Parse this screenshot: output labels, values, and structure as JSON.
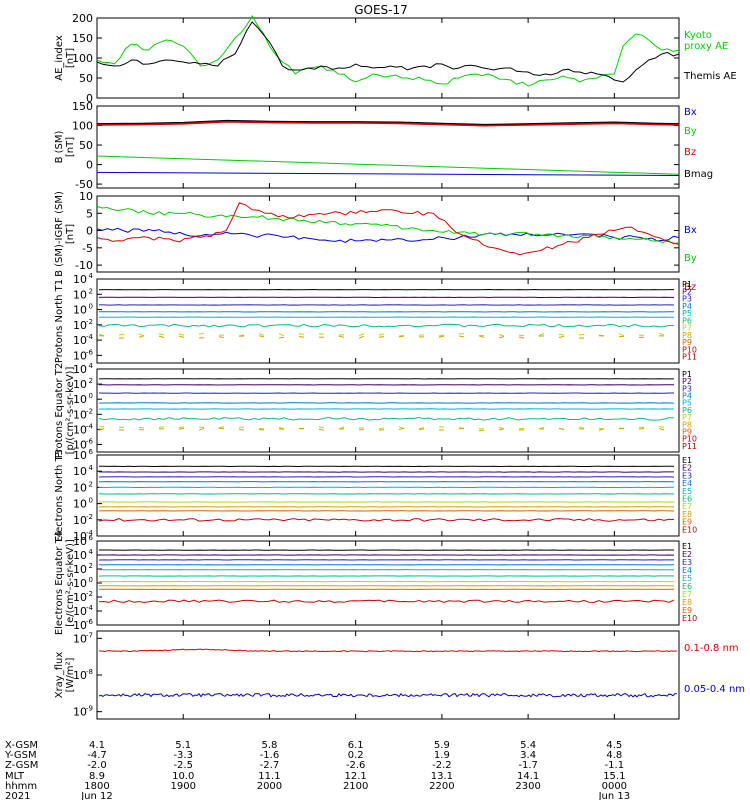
{
  "title": "GOES-17",
  "chart_data": [
    {
      "type": "line",
      "panel": "ae",
      "ylabel": "AE_index [nT]",
      "ylim": [
        0,
        200
      ],
      "yticks": [
        "0",
        "50",
        "100",
        "150",
        "200"
      ],
      "yscale": "linear",
      "x_hours_range": [
        18,
        24.75
      ],
      "series": [
        {
          "name": "Kyoto proxy AE",
          "color": "#00d000",
          "x": [
            18.0,
            18.2,
            18.4,
            18.6,
            18.8,
            19.0,
            19.2,
            19.4,
            19.6,
            19.8,
            20.0,
            20.15,
            20.3,
            20.45,
            20.6,
            20.8,
            21.0,
            21.2,
            21.4,
            21.6,
            21.8,
            22.0,
            22.2,
            22.4,
            22.6,
            22.8,
            23.0,
            23.2,
            23.4,
            23.6,
            23.8,
            24.0,
            24.1,
            24.25,
            24.4,
            24.55,
            24.75
          ],
          "y": [
            95,
            85,
            135,
            120,
            145,
            130,
            80,
            95,
            150,
            205,
            130,
            90,
            60,
            75,
            80,
            60,
            40,
            60,
            55,
            50,
            45,
            35,
            50,
            60,
            55,
            45,
            30,
            45,
            55,
            40,
            50,
            60,
            130,
            160,
            145,
            120,
            120
          ]
        },
        {
          "name": "Themis AE",
          "color": "#000000",
          "x": [
            18.0,
            18.2,
            18.4,
            18.6,
            18.8,
            19.0,
            19.2,
            19.4,
            19.6,
            19.8,
            20.0,
            20.15,
            20.3,
            20.45,
            20.6,
            20.8,
            21.0,
            21.2,
            21.4,
            21.6,
            21.8,
            22.0,
            22.2,
            22.4,
            22.6,
            22.8,
            23.0,
            23.2,
            23.4,
            23.6,
            23.8,
            24.0,
            24.1,
            24.25,
            24.4,
            24.55,
            24.75
          ],
          "y": [
            90,
            80,
            95,
            85,
            95,
            90,
            85,
            80,
            110,
            190,
            140,
            80,
            70,
            75,
            80,
            75,
            85,
            75,
            80,
            70,
            80,
            85,
            75,
            80,
            70,
            75,
            65,
            60,
            70,
            65,
            60,
            45,
            40,
            70,
            95,
            110,
            110
          ]
        }
      ],
      "legend": [
        {
          "text": "Kyoto",
          "color": "#00d000"
        },
        {
          "text": "proxy AE",
          "color": "#00d000"
        },
        {
          "text": "Themis AE",
          "color": "#000000"
        }
      ]
    },
    {
      "type": "line",
      "panel": "bsm",
      "ylabel": "B (SM) [nT]",
      "ylim": [
        -60,
        150
      ],
      "yticks": [
        "-50",
        "0",
        "50",
        "100",
        "150"
      ],
      "yscale": "linear",
      "x_hours_range": [
        18,
        24.75
      ],
      "series": [
        {
          "name": "Bx",
          "color": "#0000dd",
          "x": [
            18,
            24.75
          ],
          "y": [
            -20,
            -28
          ]
        },
        {
          "name": "By",
          "color": "#00cc00",
          "x": [
            18,
            24.75
          ],
          "y": [
            22,
            -25
          ]
        },
        {
          "name": "Bz",
          "color": "#dd0000",
          "x": [
            18,
            18.5,
            19.0,
            19.5,
            20.0,
            20.5,
            21.0,
            21.5,
            22.0,
            22.5,
            23.0,
            23.5,
            24.0,
            24.5,
            24.75
          ],
          "y": [
            102,
            103,
            105,
            110,
            108,
            107,
            107,
            106,
            103,
            100,
            102,
            104,
            106,
            103,
            102
          ]
        },
        {
          "name": "Bmag",
          "color": "#000000",
          "x": [
            18,
            18.5,
            19.0,
            19.5,
            20.0,
            20.5,
            21.0,
            21.5,
            22.0,
            22.5,
            23.0,
            23.5,
            24.0,
            24.5,
            24.75
          ],
          "y": [
            105,
            106,
            108,
            113,
            111,
            110,
            110,
            109,
            106,
            103,
            105,
            107,
            109,
            106,
            105
          ]
        }
      ],
      "legend": [
        {
          "text": "Bx",
          "color": "#0000dd"
        },
        {
          "text": "By",
          "color": "#00cc00"
        },
        {
          "text": "Bz",
          "color": "#dd0000"
        },
        {
          "text": "Bmag",
          "color": "#000000"
        }
      ]
    },
    {
      "type": "line",
      "panel": "igrf",
      "ylabel": "B (SM)-IGRF (SM) [nT]",
      "ylim": [
        -12,
        10
      ],
      "yticks": [
        "-10",
        "-5",
        "0",
        "5",
        "10"
      ],
      "yscale": "linear",
      "x_hours_range": [
        18,
        24.75
      ],
      "series": [
        {
          "name": "Bx",
          "color": "#0000dd",
          "x": [
            18,
            18.3,
            18.6,
            18.9,
            19.2,
            19.5,
            19.8,
            20.1,
            20.4,
            20.7,
            21.0,
            21.3,
            21.6,
            21.9,
            22.2,
            22.5,
            22.8,
            23.1,
            23.4,
            23.7,
            24.0,
            24.3,
            24.5,
            24.75
          ],
          "y": [
            0.5,
            0,
            0.3,
            -1,
            -1.5,
            -0.5,
            -1.5,
            -1.5,
            -2,
            -3,
            -3,
            -2.5,
            -3,
            -2.5,
            -2,
            -1,
            -1,
            -1.5,
            -1,
            -1,
            -2,
            -2,
            -3,
            -2
          ]
        },
        {
          "name": "By",
          "color": "#00cc00",
          "x": [
            18,
            18.3,
            18.6,
            18.9,
            19.2,
            19.5,
            19.8,
            20.1,
            20.4,
            20.7,
            21.0,
            21.3,
            21.6,
            21.9,
            22.2,
            22.5,
            22.8,
            23.1,
            23.4,
            23.7,
            24.0,
            24.3,
            24.5,
            24.75
          ],
          "y": [
            7,
            6,
            5,
            5,
            4.5,
            4,
            4,
            3.5,
            3,
            2.5,
            2,
            1.5,
            0.5,
            0,
            -0.5,
            -1,
            -1,
            -1,
            -1.5,
            -1.5,
            -2,
            -2.5,
            -3,
            -3.5
          ]
        },
        {
          "name": "Bz",
          "color": "#dd0000",
          "x": [
            18,
            18.3,
            18.6,
            18.9,
            19.2,
            19.5,
            19.65,
            19.8,
            19.95,
            20.1,
            20.4,
            20.7,
            21.0,
            21.3,
            21.6,
            21.9,
            22.1,
            22.3,
            22.6,
            22.9,
            23.1,
            23.4,
            23.7,
            24.0,
            24.2,
            24.4,
            24.6,
            24.75
          ],
          "y": [
            -2,
            -3,
            -2,
            -3,
            -2,
            0,
            8,
            6,
            5,
            4,
            4,
            5,
            5,
            6,
            5,
            5,
            1,
            -2,
            -5,
            -7,
            -6,
            -4,
            -2,
            0,
            1,
            -1,
            -3,
            -4
          ]
        }
      ],
      "legend": [
        {
          "text": "Bx",
          "color": "#0000dd"
        },
        {
          "text": "By",
          "color": "#00cc00"
        },
        {
          "text": "Bz",
          "color": "#dd0000"
        }
      ]
    },
    {
      "type": "line",
      "panel": "protons_t1",
      "ylabel": "Protons North T1",
      "ylim_log10": [
        -7,
        4
      ],
      "yticks_exp": [
        -6,
        -4,
        -2,
        0,
        2,
        4
      ],
      "yscale": "log",
      "x_hours_range": [
        18,
        24.75
      ],
      "series": [
        {
          "name": "P1",
          "color": "#000000",
          "level": 2.6
        },
        {
          "name": "P2",
          "color": "#3a0060",
          "level": 1.6
        },
        {
          "name": "P3",
          "color": "#2020cc",
          "level": 0.6
        },
        {
          "name": "P4",
          "color": "#0077cc",
          "level": -0.3
        },
        {
          "name": "P5",
          "color": "#00b0d0",
          "level": -1.0
        },
        {
          "name": "P6",
          "color": "#00c080",
          "level": -2.1
        },
        {
          "name": "P7",
          "color": "#aadd00",
          "level": -3.3
        },
        {
          "name": "P8",
          "color": "#d0a000",
          "level": -3.6
        },
        {
          "name": "P9",
          "color": "#e06000",
          "level": -9
        },
        {
          "name": "P10",
          "color": "#cc0000",
          "level": -9
        },
        {
          "name": "P11",
          "color": "#aa0000",
          "level": -9
        }
      ]
    },
    {
      "type": "line",
      "panel": "protons_t2",
      "ylabel": "Protons Equator T2 [p/(cm²-s-sr-keV)]",
      "ylim_log10": [
        -7,
        4
      ],
      "yticks_exp": [
        -6,
        -4,
        -2,
        0,
        2,
        4
      ],
      "yscale": "log",
      "x_hours_range": [
        18,
        24.75
      ],
      "series": [
        {
          "name": "P1",
          "color": "#000000",
          "level": 2.7
        },
        {
          "name": "P2",
          "color": "#3a0060",
          "level": 1.9
        },
        {
          "name": "P3",
          "color": "#2020cc",
          "level": 0.8
        },
        {
          "name": "P4",
          "color": "#0077cc",
          "level": -0.5
        },
        {
          "name": "P5",
          "color": "#00b0d0",
          "level": -1.3
        },
        {
          "name": "P6",
          "color": "#00c080",
          "level": -2.6
        },
        {
          "name": "P7",
          "color": "#aadd00",
          "level": -3.8
        },
        {
          "name": "P8",
          "color": "#d0a000",
          "level": -4.0
        },
        {
          "name": "P9",
          "color": "#e06000",
          "level": -9
        },
        {
          "name": "P10",
          "color": "#cc0000",
          "level": -9
        },
        {
          "name": "P11",
          "color": "#aa0000",
          "level": -9
        }
      ]
    },
    {
      "type": "line",
      "panel": "electrons_t3",
      "ylabel": "Electrons North T3",
      "ylim_log10": [
        -4,
        6
      ],
      "yticks_exp": [
        -4,
        -2,
        0,
        2,
        4,
        6
      ],
      "yscale": "log",
      "x_hours_range": [
        18,
        24.75
      ],
      "series": [
        {
          "name": "E1",
          "color": "#000000",
          "level": 4.6
        },
        {
          "name": "E2",
          "color": "#3a0060",
          "level": 3.9
        },
        {
          "name": "E3",
          "color": "#2020cc",
          "level": 3.3
        },
        {
          "name": "E4",
          "color": "#0077cc",
          "level": 2.7
        },
        {
          "name": "E5",
          "color": "#00b0d0",
          "level": 2.0
        },
        {
          "name": "E6",
          "color": "#00c080",
          "level": 1.2
        },
        {
          "name": "E7",
          "color": "#aadd00",
          "level": 0.2
        },
        {
          "name": "E8",
          "color": "#d0a000",
          "level": -0.4
        },
        {
          "name": "E9",
          "color": "#e06000",
          "level": -0.9
        },
        {
          "name": "E10",
          "color": "#cc0000",
          "level": -2.0
        }
      ]
    },
    {
      "type": "line",
      "panel": "electrons_t4",
      "ylabel": "Electrons Equator T4 [e/(cm²-s-sr-keV)]",
      "ylim_log10": [
        -6,
        6
      ],
      "yticks_exp": [
        -6,
        -4,
        -2,
        0,
        2,
        4,
        6
      ],
      "yscale": "log",
      "x_hours_range": [
        18,
        24.75
      ],
      "series": [
        {
          "name": "E1",
          "color": "#000000",
          "level": 4.7
        },
        {
          "name": "E2",
          "color": "#3a0060",
          "level": 4.0
        },
        {
          "name": "E3",
          "color": "#2020cc",
          "level": 3.3
        },
        {
          "name": "E4",
          "color": "#0077cc",
          "level": 2.6
        },
        {
          "name": "E5",
          "color": "#00b0d0",
          "level": 1.9
        },
        {
          "name": "E6",
          "color": "#00c080",
          "level": 1.0
        },
        {
          "name": "E7",
          "color": "#aadd00",
          "level": 0.2
        },
        {
          "name": "E8",
          "color": "#d0a000",
          "level": -0.4
        },
        {
          "name": "E9",
          "color": "#e06000",
          "level": -0.9
        },
        {
          "name": "E10",
          "color": "#cc0000",
          "level": -2.6
        }
      ]
    },
    {
      "type": "line",
      "panel": "xray",
      "ylabel": "Xray_flux [W/m²]",
      "ylim_log10": [
        -9.2,
        -6.8
      ],
      "yticks_exp": [
        -9,
        -8,
        -7
      ],
      "yscale": "log",
      "x_hours_range": [
        18,
        24.75
      ],
      "series": [
        {
          "name": "0.1-0.8 nm",
          "color": "#dd0000",
          "level": -7.35
        },
        {
          "name": "0.05-0.4 nm",
          "color": "#0000cc",
          "level": -8.55
        }
      ],
      "legend": [
        {
          "text": "0.1-0.8 nm",
          "color": "#dd0000"
        },
        {
          "text": "0.05-0.4 nm",
          "color": "#0000cc"
        }
      ]
    }
  ],
  "xaxis": {
    "row_labels": [
      "X-GSM",
      "Y-GSM",
      "Z-GSM",
      "MLT",
      "hhmm",
      "2021"
    ],
    "columns": [
      {
        "h": 18.0,
        "vals": [
          "4.1",
          "-4.7",
          "-2.0",
          "8.9",
          "1800",
          "Jun 12"
        ]
      },
      {
        "h": 19.0,
        "vals": [
          "5.1",
          "-3.3",
          "-2.5",
          "10.0",
          "1900",
          ""
        ]
      },
      {
        "h": 20.0,
        "vals": [
          "5.8",
          "-1.6",
          "-2.7",
          "11.1",
          "2000",
          ""
        ]
      },
      {
        "h": 21.0,
        "vals": [
          "6.1",
          "0.2",
          "-2.6",
          "12.1",
          "2100",
          ""
        ]
      },
      {
        "h": 22.0,
        "vals": [
          "5.9",
          "1.9",
          "-2.2",
          "13.1",
          "2200",
          ""
        ]
      },
      {
        "h": 23.0,
        "vals": [
          "5.4",
          "3.4",
          "-1.7",
          "14.1",
          "2300",
          ""
        ]
      },
      {
        "h": 24.0,
        "vals": [
          "4.5",
          "4.8",
          "-1.1",
          "15.1",
          "0000",
          "Jun 13"
        ]
      }
    ]
  }
}
